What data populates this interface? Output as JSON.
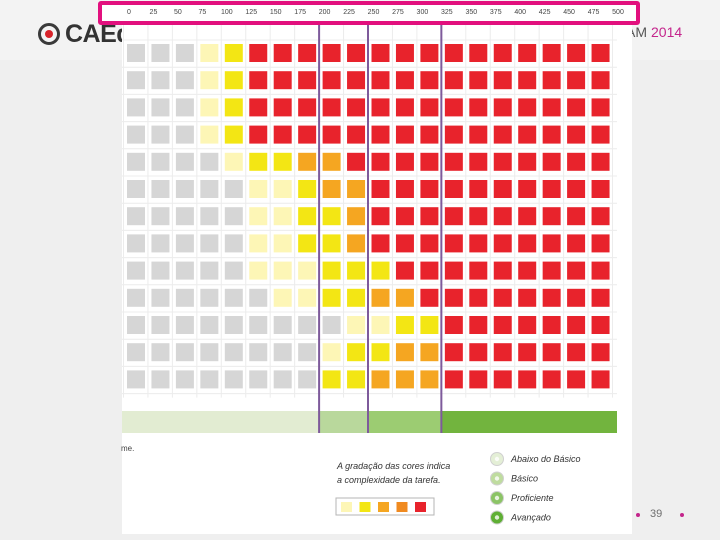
{
  "header": {
    "logo_text": "CAEd",
    "tail_text": "AM",
    "year": "2014"
  },
  "slide": {
    "page_number": "39"
  },
  "chart_data": {
    "type": "heatmap",
    "title": "",
    "x_ticks": [
      "0",
      "25",
      "50",
      "75",
      "100",
      "125",
      "150",
      "175",
      "200",
      "225",
      "250",
      "275",
      "300",
      "325",
      "350",
      "375",
      "400",
      "425",
      "450",
      "475",
      "500"
    ],
    "rows": [
      "GGGLYRRRRRRRRRRRRRRR",
      "GGGLYRRRRRRRRRRRRRRR",
      "GGGLYRRRRRRRRRRRRRRR",
      "GGGLYRRRRRRRRRRRRRRR",
      "GGGGLYYOORRRRRRRRRRR",
      "GGGGGLLYOORRRRRRRRRR",
      "GGGGGLLYYORRRRRRRRRR",
      "GGGGGLLYYORRRRRRRRRR",
      "GGGGGLLLYYYRRRRRRRRR",
      "GGGGGGLLYYOORRRRRRRR",
      "GGGGGGGGGLLYYRRRRRRR",
      "GGGGGGGGLYYOORRRRRRR",
      "GGGGGGGGYYOOORRRRRRR"
    ],
    "color_codes": {
      "G": "#d6d6d6",
      "L": "#fdf6b6",
      "Y": "#f3e614",
      "O": "#f5a621",
      "R": "#e8232c"
    },
    "band_colors": [
      "#e2ecd2",
      "#b9d89c",
      "#9ccc72",
      "#72b43e"
    ],
    "cut_points": [
      200,
      250,
      325
    ],
    "bottom_text": "me.",
    "gradient_caption": [
      "A gradação das cores indica",
      "a complexidade da tarefa."
    ],
    "gradient_swatches": [
      "#fdf6b6",
      "#f3e614",
      "#f5a621",
      "#f08a20",
      "#e8232c"
    ],
    "legend": [
      {
        "label": "Abaixo do Básico",
        "color": "#e4efd6"
      },
      {
        "label": "Básico",
        "color": "#bfdc9f"
      },
      {
        "label": "Proficiente",
        "color": "#8cc466"
      },
      {
        "label": "Avançado",
        "color": "#5faf34"
      }
    ],
    "highlight_color": "#e2107e",
    "cut_line_color": "#7e5a9b"
  }
}
